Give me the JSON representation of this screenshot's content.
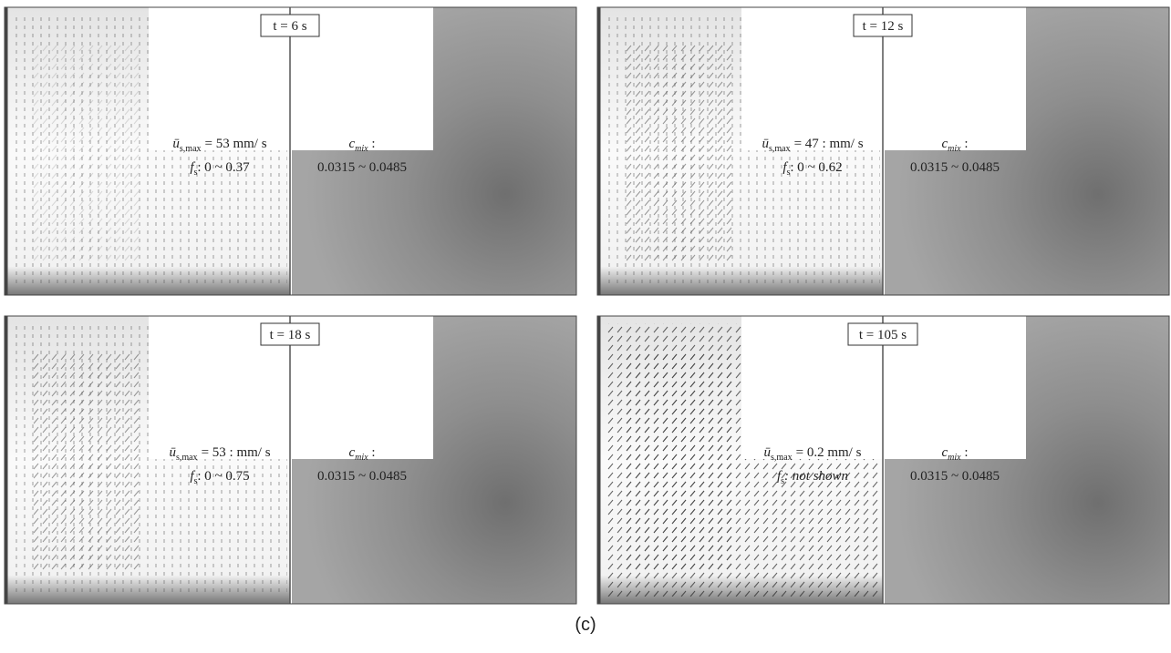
{
  "panels": [
    {
      "time": "t = 6 s",
      "u_symbol": "ū",
      "u_sub": "s,max",
      "u_value": "= 53  mm/ s",
      "fs_symbol": "f",
      "fs_sub": "s",
      "fs_value": ": 0 ~ 0.37",
      "c_symbol": "c",
      "c_sub": "mix",
      "c_colon": " :",
      "c_range": "0.0315 ~ 0.0485"
    },
    {
      "time": "t = 12 s",
      "u_symbol": "ū",
      "u_sub": "s,max",
      "u_value": "= 47 : mm/ s",
      "fs_symbol": "f",
      "fs_sub": "s",
      "fs_value": ": 0 ~ 0.62",
      "c_symbol": "c",
      "c_sub": "mix",
      "c_colon": " :",
      "c_range": "0.0315 ~ 0.0485"
    },
    {
      "time": "t = 18 s",
      "u_symbol": "ū",
      "u_sub": "s,max",
      "u_value": "= 53 : mm/ s",
      "fs_symbol": "f",
      "fs_sub": "s",
      "fs_value": ": 0 ~ 0.75",
      "c_symbol": "c",
      "c_sub": "mix",
      "c_colon": " :",
      "c_range": "0.0315 ~ 0.0485"
    },
    {
      "time": "t = 105 s",
      "u_symbol": "ū",
      "u_sub": "s,max",
      "u_value": "= 0.2  mm/ s",
      "fs_symbol": "f",
      "fs_sub": "s",
      "fs_value": ": not shown",
      "c_symbol": "c",
      "c_sub": "mix",
      "c_colon": " :",
      "c_range": "0.0315 ~ 0.0485"
    }
  ],
  "caption": "(c)"
}
